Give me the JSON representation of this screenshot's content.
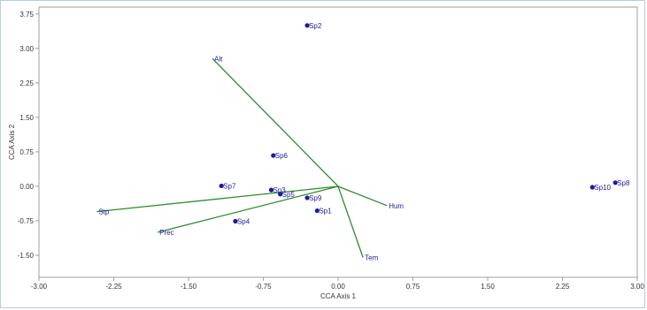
{
  "chart_data": {
    "type": "scatter",
    "title": "",
    "xlabel": "CCA Axis 1",
    "ylabel": "CCA Axis 2",
    "xlim": [
      -3.0,
      3.0
    ],
    "ylim": [
      -1.98,
      3.9
    ],
    "x_ticks": [
      "-3.00",
      "-2.25",
      "-1.50",
      "-0.75",
      "0.00",
      "0.75",
      "1.50",
      "2.25",
      "3.00"
    ],
    "y_ticks": [
      "3.75",
      "3.00",
      "2.25",
      "1.50",
      "0.75",
      "0.00",
      "-0.75",
      "-1.50"
    ],
    "colors": {
      "points": "#1a1aa0",
      "vectors": "#2e8b2e",
      "axes": "#888888",
      "frame": "#b8cce4"
    },
    "species": [
      {
        "name": "Sp2",
        "x": -0.31,
        "y": 3.5
      },
      {
        "name": "Sp6",
        "x": -0.65,
        "y": 0.67
      },
      {
        "name": "Sp7",
        "x": -1.17,
        "y": 0.01
      },
      {
        "name": "Sp3",
        "x": -0.67,
        "y": -0.08
      },
      {
        "name": "Sp5",
        "x": -0.58,
        "y": -0.17
      },
      {
        "name": "Sp9",
        "x": -0.31,
        "y": -0.25
      },
      {
        "name": "Sp1",
        "x": -0.21,
        "y": -0.53
      },
      {
        "name": "Sp4",
        "x": -1.03,
        "y": -0.76
      },
      {
        "name": "Sp10",
        "x": 2.55,
        "y": -0.02
      },
      {
        "name": "Sp8",
        "x": 2.78,
        "y": 0.08
      }
    ],
    "vectors": [
      {
        "name": "Alt",
        "x": -1.26,
        "y": 2.78
      },
      {
        "name": "Stp",
        "x": -2.42,
        "y": -0.55
      },
      {
        "name": "Prec",
        "x": -1.81,
        "y": -1.0
      },
      {
        "name": "Hum",
        "x": 0.49,
        "y": -0.42
      },
      {
        "name": "Tem",
        "x": 0.25,
        "y": -1.55
      }
    ]
  }
}
